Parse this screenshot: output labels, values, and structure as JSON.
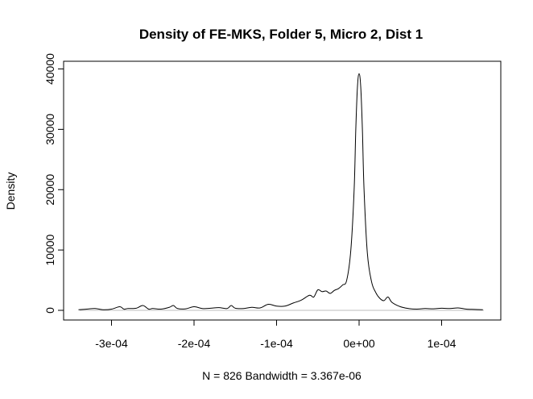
{
  "chart_data": {
    "type": "line",
    "title": "Density of FE-MKS, Folder 5, Micro 2, Dist 1",
    "xlabel": "N = 826   Bandwidth = 3.367e-06",
    "ylabel": "Density",
    "xlim": [
      -0.00034,
      0.00015
    ],
    "ylim": [
      0,
      40000
    ],
    "x_ticks": [
      -0.0003,
      -0.0002,
      -0.0001,
      0,
      0.0001
    ],
    "x_tick_labels": [
      "-3e-04",
      "-2e-04",
      "-1e-04",
      "0e+00",
      "1e-04"
    ],
    "y_ticks": [
      0,
      10000,
      20000,
      30000,
      40000
    ],
    "y_tick_labels": [
      "0",
      "10000",
      "20000",
      "30000",
      "40000"
    ],
    "series": [
      {
        "x": [
          -0.00034,
          -0.00033,
          -0.00032,
          -0.00031,
          -0.0003,
          -0.00029,
          -0.000285,
          -0.00028,
          -0.00027,
          -0.000262,
          -0.000255,
          -0.00025,
          -0.00024,
          -0.00023,
          -0.000225,
          -0.00022,
          -0.00021,
          -0.0002,
          -0.00019,
          -0.00018,
          -0.00017,
          -0.00016,
          -0.000155,
          -0.00015,
          -0.00014,
          -0.00013,
          -0.00012,
          -0.00011,
          -0.0001,
          -9e-05,
          -8e-05,
          -7e-05,
          -6e-05,
          -5.5e-05,
          -5e-05,
          -4.5e-05,
          -4e-05,
          -3.5e-05,
          -3e-05,
          -2.5e-05,
          -2e-05,
          -1.5e-05,
          -1e-05,
          -6e-06,
          -4e-06,
          -2e-06,
          0,
          2e-06,
          4e-06,
          6e-06,
          1e-05,
          1.5e-05,
          2e-05,
          2.5e-05,
          3e-05,
          3.5e-05,
          4e-05,
          5e-05,
          6e-05,
          7e-05,
          8e-05,
          9e-05,
          0.0001,
          0.00011,
          0.00012,
          0.00013,
          0.00014,
          0.00015
        ],
        "values": [
          100,
          200,
          300,
          100,
          200,
          600,
          200,
          300,
          350,
          800,
          200,
          300,
          200,
          500,
          800,
          300,
          250,
          600,
          300,
          350,
          450,
          300,
          800,
          350,
          300,
          500,
          400,
          1000,
          700,
          700,
          1200,
          1700,
          2500,
          2200,
          3400,
          3100,
          3200,
          2800,
          3300,
          3600,
          4200,
          5000,
          10000,
          20000,
          30000,
          37000,
          39200,
          37000,
          30000,
          20000,
          9500,
          4800,
          3000,
          2000,
          1600,
          2200,
          1300,
          600,
          300,
          200,
          300,
          250,
          350,
          300,
          400,
          200,
          150,
          100
        ]
      }
    ]
  }
}
